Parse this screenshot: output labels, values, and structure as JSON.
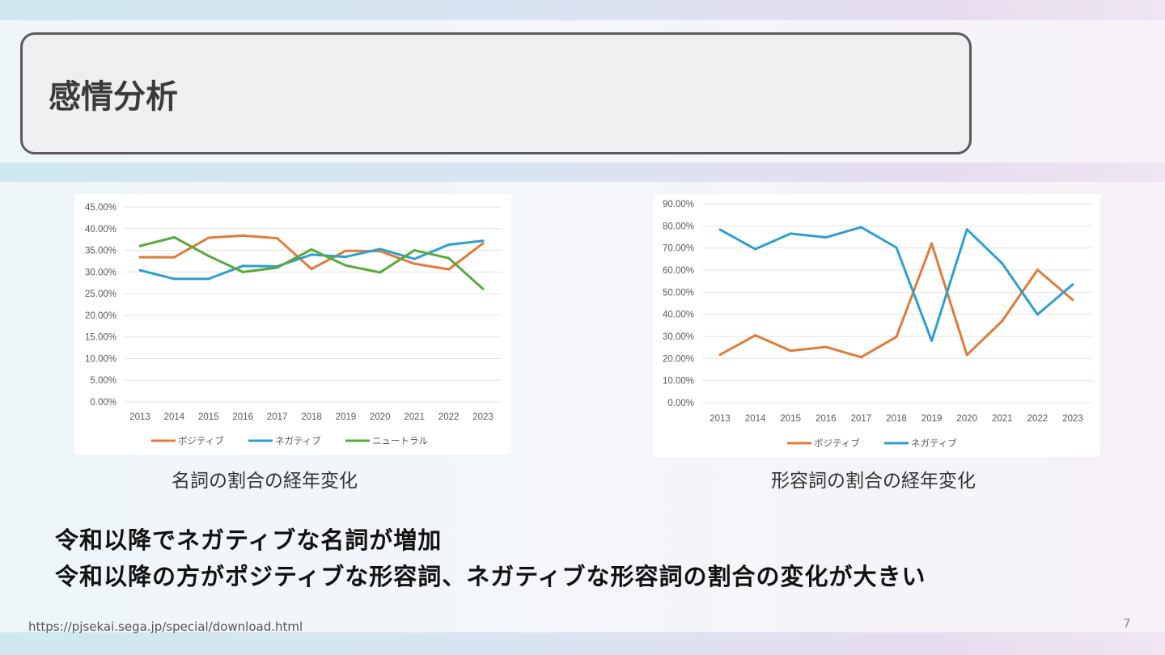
{
  "slide": {
    "title": "感情分析",
    "points": [
      "令和以降でネガティブな名詞が増加",
      "令和以降の方がポジティブな形容詞、ネガティブな形容詞の割合の変化が大きい"
    ],
    "source_url": "https://pjsekai.sega.jp/special/download.html",
    "page_number": "7"
  },
  "chart_data": [
    {
      "type": "line",
      "title": "名詞の割合の経年変化",
      "categories": [
        "2013",
        "2014",
        "2015",
        "2016",
        "2017",
        "2018",
        "2019",
        "2020",
        "2021",
        "2022",
        "2023"
      ],
      "ylim": [
        0,
        45
      ],
      "yticks": [
        "0.00%",
        "5.00%",
        "10.00%",
        "15.00%",
        "20.00%",
        "25.00%",
        "30.00%",
        "35.00%",
        "40.00%",
        "45.00%"
      ],
      "grid": true,
      "legend_position": "bottom",
      "series": [
        {
          "name": "ポジティブ",
          "color": "#e07b39",
          "values": [
            33.4,
            33.4,
            37.9,
            38.4,
            37.8,
            30.7,
            34.9,
            34.8,
            31.9,
            30.6,
            36.6
          ]
        },
        {
          "name": "ネガティブ",
          "color": "#2d9fd0",
          "values": [
            30.4,
            28.4,
            28.4,
            31.4,
            31.3,
            34.0,
            33.5,
            35.3,
            33.0,
            36.3,
            37.2
          ]
        },
        {
          "name": "ニュートラル",
          "color": "#5aa83c",
          "values": [
            36.0,
            38.0,
            33.7,
            30.0,
            31.0,
            35.2,
            31.5,
            29.9,
            35.0,
            33.2,
            26.1
          ]
        }
      ]
    },
    {
      "type": "line",
      "title": "形容詞の割合の経年変化",
      "categories": [
        "2013",
        "2014",
        "2015",
        "2016",
        "2017",
        "2018",
        "2019",
        "2020",
        "2021",
        "2022",
        "2023"
      ],
      "ylim": [
        0,
        90
      ],
      "yticks": [
        "0.00%",
        "10.00%",
        "20.00%",
        "30.00%",
        "40.00%",
        "50.00%",
        "60.00%",
        "70.00%",
        "80.00%",
        "90.00%"
      ],
      "grid": true,
      "legend_position": "bottom",
      "series": [
        {
          "name": "ポジティブ",
          "color": "#e07b39",
          "values": [
            21.7,
            30.5,
            23.5,
            25.2,
            20.6,
            29.8,
            72.0,
            21.6,
            37.0,
            60.1,
            46.5
          ]
        },
        {
          "name": "ネガティブ",
          "color": "#2d9fd0",
          "values": [
            78.3,
            69.5,
            76.5,
            74.8,
            79.4,
            70.2,
            28.0,
            78.4,
            63.0,
            39.9,
            53.5
          ]
        }
      ]
    }
  ]
}
